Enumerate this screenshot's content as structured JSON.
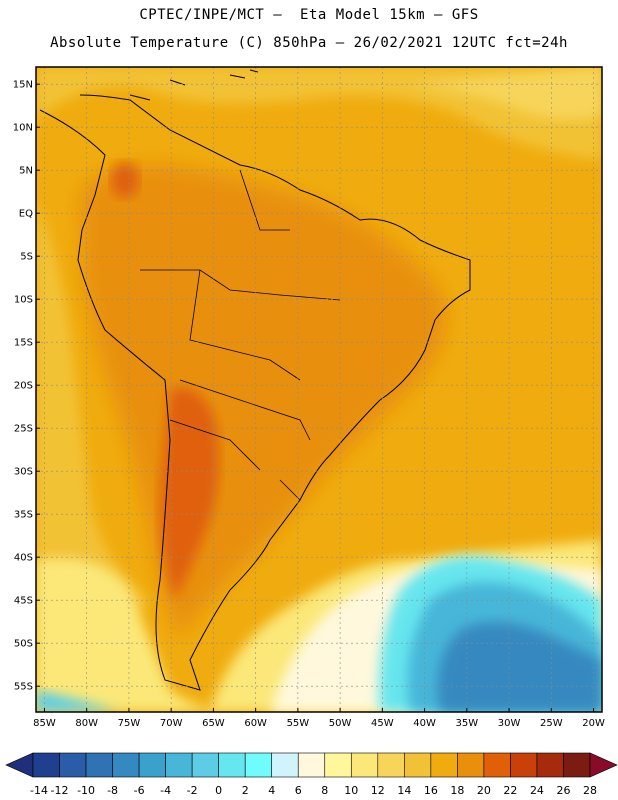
{
  "header": {
    "line1": "CPTEC/INPE/MCT –  Eta Model 15km – GFS",
    "line2": "Absolute Temperature (C) 850hPa – 26/02/2021 12UTC fct=24h"
  },
  "map": {
    "lon_range": [
      -86,
      -19
    ],
    "lat_range": [
      -58,
      17
    ],
    "lat_ticks": [
      {
        "value": 15,
        "label": "15N"
      },
      {
        "value": 10,
        "label": "10N"
      },
      {
        "value": 5,
        "label": "5N"
      },
      {
        "value": 0,
        "label": "EQ"
      },
      {
        "value": -5,
        "label": "5S"
      },
      {
        "value": -10,
        "label": "10S"
      },
      {
        "value": -15,
        "label": "15S"
      },
      {
        "value": -20,
        "label": "20S"
      },
      {
        "value": -25,
        "label": "25S"
      },
      {
        "value": -30,
        "label": "30S"
      },
      {
        "value": -35,
        "label": "35S"
      },
      {
        "value": -40,
        "label": "40S"
      },
      {
        "value": -45,
        "label": "45S"
      },
      {
        "value": -50,
        "label": "50S"
      },
      {
        "value": -55,
        "label": "55S"
      }
    ],
    "lon_ticks": [
      {
        "value": -85,
        "label": "85W"
      },
      {
        "value": -80,
        "label": "80W"
      },
      {
        "value": -75,
        "label": "75W"
      },
      {
        "value": -70,
        "label": "70W"
      },
      {
        "value": -65,
        "label": "65W"
      },
      {
        "value": -60,
        "label": "60W"
      },
      {
        "value": -55,
        "label": "55W"
      },
      {
        "value": -50,
        "label": "50W"
      },
      {
        "value": -45,
        "label": "45W"
      },
      {
        "value": -40,
        "label": "40W"
      },
      {
        "value": -35,
        "label": "35W"
      },
      {
        "value": -30,
        "label": "30W"
      },
      {
        "value": -25,
        "label": "25W"
      },
      {
        "value": -20,
        "label": "20W"
      }
    ],
    "grid": true
  },
  "colorbar": {
    "labels": [
      "-14",
      "-12",
      "-10",
      "-8",
      "-6",
      "-4",
      "-2",
      "0",
      "2",
      "4",
      "6",
      "8",
      "10",
      "12",
      "14",
      "16",
      "18",
      "20",
      "22",
      "24",
      "26",
      "28"
    ],
    "colors": [
      "#1f3f8f",
      "#2a5ca8",
      "#2f73b5",
      "#3489c0",
      "#3aa0cc",
      "#47b6d8",
      "#5ccde4",
      "#66e6ee",
      "#70fcfc",
      "#cff4fb",
      "#fff8dc",
      "#fff79a",
      "#fbe878",
      "#f7d55a",
      "#f2c236",
      "#f0ac0e",
      "#e8900a",
      "#e06008",
      "#c8400a",
      "#a62a0c",
      "#7c1c10"
    ],
    "low_color": "#1f2f7a",
    "high_color": "#8a0a2a"
  }
}
